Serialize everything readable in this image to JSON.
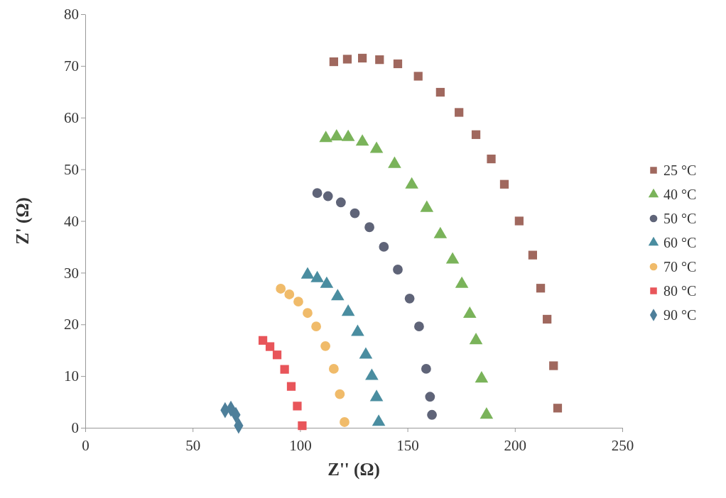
{
  "chart_data": {
    "type": "scatter",
    "xlabel": "Z'' (Ω)",
    "ylabel": "Z' (Ω)",
    "xlim": [
      0,
      250
    ],
    "xticks": [
      0,
      50,
      100,
      150,
      200,
      250
    ],
    "ylim": [
      0,
      80
    ],
    "yticks": [
      0,
      10,
      20,
      30,
      40,
      50,
      60,
      70,
      80
    ],
    "grid": false,
    "legend": "right",
    "series": [
      {
        "name": "25 °C",
        "color": "#a0685e",
        "marker": "square",
        "x": [
          115.7,
          122,
          129,
          137,
          145.5,
          155,
          165.3,
          174,
          181.9,
          189,
          195.1,
          202,
          208.3,
          212,
          215,
          218,
          219.9
        ],
        "values": [
          70.8,
          71.3,
          71.5,
          71.2,
          70.4,
          68,
          64.9,
          61,
          56.7,
          52,
          47.1,
          40,
          33.4,
          27,
          21,
          12,
          3.8
        ]
      },
      {
        "name": "40 °C",
        "color": "#7ab35a",
        "marker": "triangle",
        "x": [
          112,
          117,
          122.4,
          129,
          135.6,
          144,
          152,
          159,
          165.3,
          171,
          175.3,
          179,
          181.9,
          184.5,
          186.8
        ],
        "values": [
          56,
          56.3,
          56.2,
          55.3,
          53.9,
          51,
          47,
          42.5,
          37.4,
          32.5,
          27.8,
          22,
          16.9,
          9.5,
          2.5
        ]
      },
      {
        "name": "50 °C",
        "color": "#5f6478",
        "marker": "circle",
        "x": [
          108,
          113,
          119,
          125.5,
          132.3,
          139,
          145.5,
          151,
          155.4,
          158.7,
          160.5,
          161.4
        ],
        "values": [
          45.4,
          44.8,
          43.6,
          41.5,
          38.8,
          35,
          30.6,
          25,
          19.6,
          11.4,
          6,
          2.5
        ]
      },
      {
        "name": "60 °C",
        "color": "#4a8da0",
        "marker": "triangle",
        "x": [
          103.5,
          108,
          112.4,
          117.5,
          122.4,
          126.8,
          130.6,
          133.4,
          135.6,
          136.6
        ],
        "values": [
          29.6,
          28.9,
          27.8,
          25.4,
          22.4,
          18.5,
          14.1,
          10,
          5.9,
          1.1
        ]
      },
      {
        "name": "70 °C",
        "color": "#f0bb6a",
        "marker": "circle",
        "x": [
          91,
          95,
          99.2,
          103.5,
          107.5,
          111.8,
          115.7,
          118.5,
          120.7
        ],
        "values": [
          26.9,
          25.8,
          24.4,
          22.2,
          19.6,
          15.8,
          11.4,
          6.5,
          1.1
        ]
      },
      {
        "name": "80 °C",
        "color": "#e8555a",
        "marker": "square",
        "x": [
          82.7,
          86,
          89.3,
          92.8,
          95.9,
          98.7,
          101
        ],
        "values": [
          16.9,
          15.7,
          14.1,
          11.3,
          8,
          4.2,
          0.4
        ]
      },
      {
        "name": "90 °C",
        "color": "#4e7f9a",
        "marker": "diamond",
        "x": [
          65.1,
          67.8,
          70.1,
          71.4
        ],
        "values": [
          3.4,
          3.7,
          2.5,
          0.4
        ]
      }
    ]
  }
}
